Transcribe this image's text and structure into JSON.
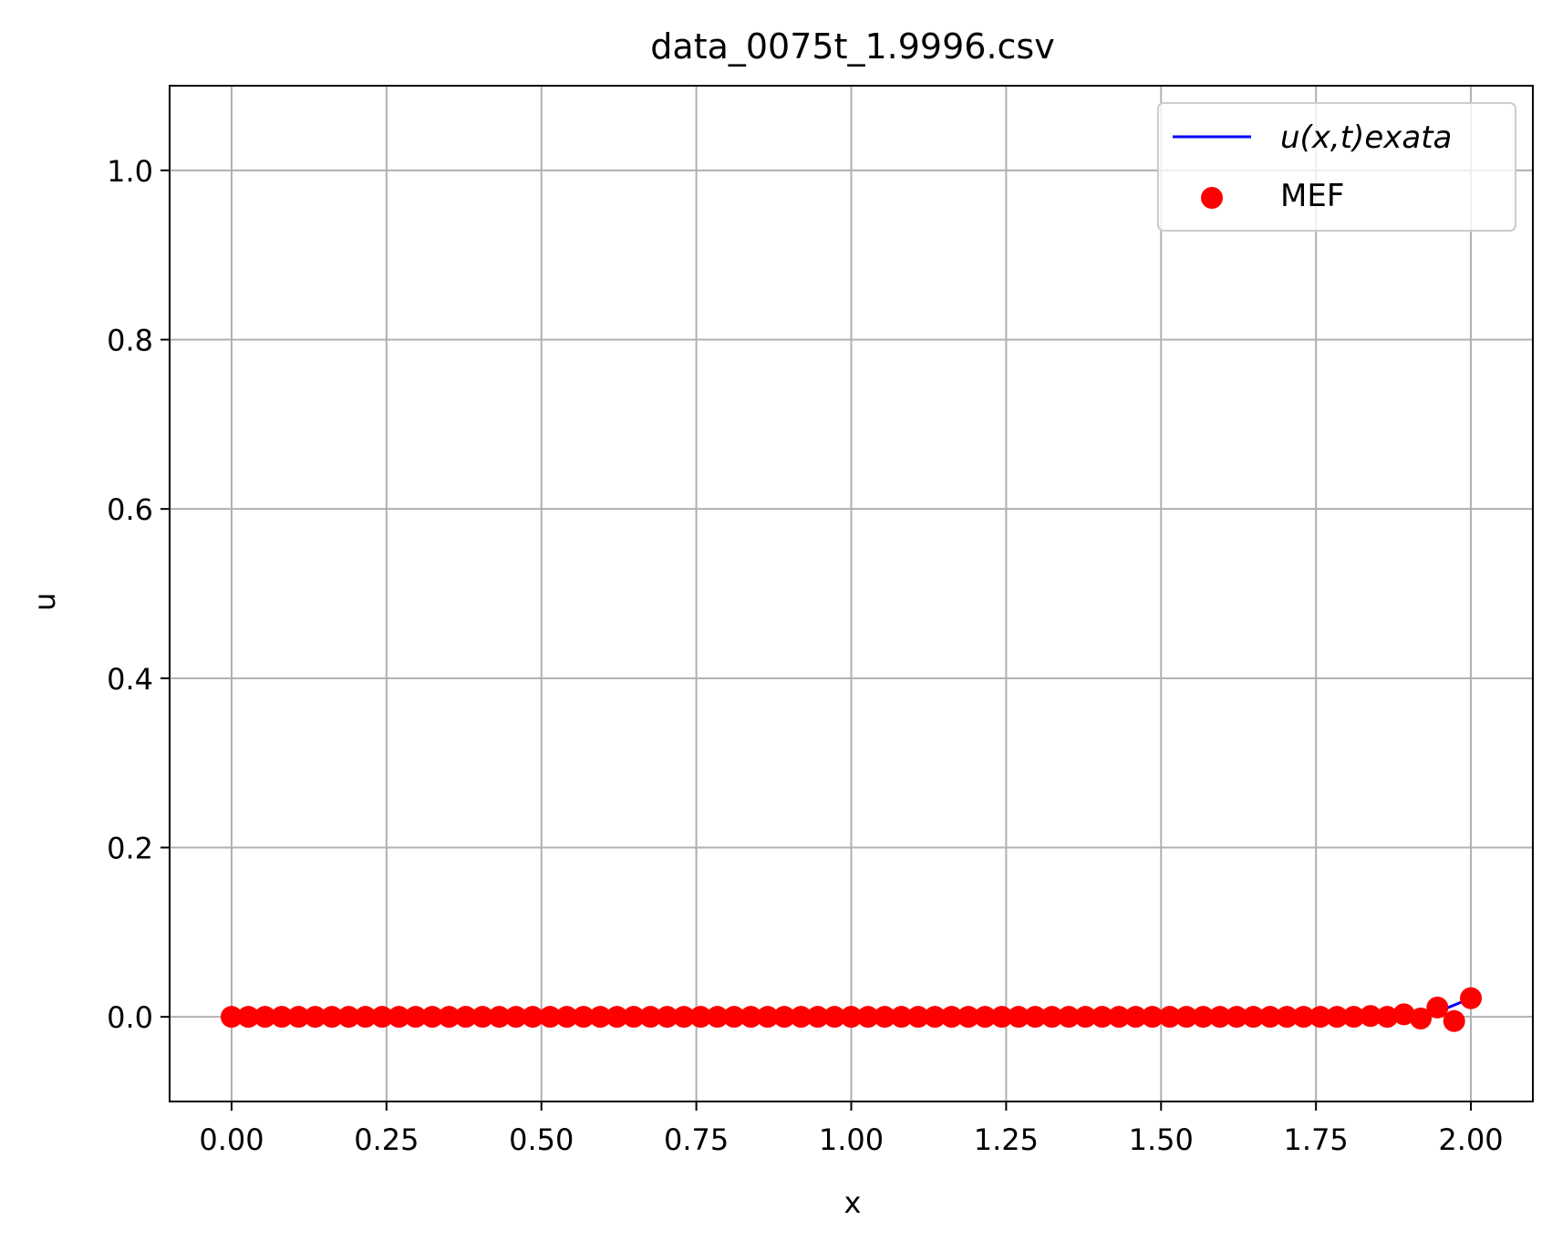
{
  "chart_data": {
    "type": "scatter",
    "title": "data_0075t_1.9996.csv",
    "xlabel": "x",
    "ylabel": "u",
    "xlim": [
      -0.1,
      2.1
    ],
    "ylim": [
      -0.1,
      1.1
    ],
    "xticks": [
      0.0,
      0.25,
      0.5,
      0.75,
      1.0,
      1.25,
      1.5,
      1.75,
      2.0
    ],
    "xtick_labels": [
      "0.00",
      "0.25",
      "0.50",
      "0.75",
      "1.00",
      "1.25",
      "1.50",
      "1.75",
      "2.00"
    ],
    "yticks": [
      0.0,
      0.2,
      0.4,
      0.6,
      0.8,
      1.0
    ],
    "ytick_labels": [
      "0.0",
      "0.2",
      "0.4",
      "0.6",
      "0.8",
      "1.0"
    ],
    "grid": true,
    "legend_position": "top-right",
    "series": [
      {
        "name": "u(x,t)exata",
        "kind": "line",
        "color": "#0000ff",
        "x": [
          0.0,
          0.1,
          0.2,
          0.3,
          0.4,
          0.5,
          0.6,
          0.7,
          0.8,
          0.9,
          1.0,
          1.1,
          1.2,
          1.3,
          1.4,
          1.5,
          1.6,
          1.7,
          1.8,
          1.85,
          1.9,
          1.95,
          2.0
        ],
        "y": [
          0,
          0,
          0,
          0,
          0,
          0,
          0,
          0,
          0,
          0,
          0,
          0,
          0,
          0,
          0,
          0,
          0,
          0,
          0,
          0.0005,
          0.002,
          0.007,
          0.022
        ]
      },
      {
        "name": "MEF",
        "kind": "scatter",
        "color": "#ff0000",
        "x": [
          0.0,
          0.027,
          0.054,
          0.081,
          0.108,
          0.135,
          0.162,
          0.189,
          0.216,
          0.243,
          0.27,
          0.297,
          0.324,
          0.351,
          0.378,
          0.405,
          0.432,
          0.459,
          0.486,
          0.514,
          0.541,
          0.568,
          0.595,
          0.622,
          0.649,
          0.676,
          0.703,
          0.73,
          0.757,
          0.784,
          0.811,
          0.838,
          0.865,
          0.892,
          0.919,
          0.946,
          0.973,
          1.0,
          1.027,
          1.054,
          1.081,
          1.108,
          1.135,
          1.162,
          1.189,
          1.216,
          1.243,
          1.27,
          1.297,
          1.324,
          1.351,
          1.378,
          1.405,
          1.432,
          1.459,
          1.486,
          1.514,
          1.541,
          1.568,
          1.595,
          1.622,
          1.649,
          1.676,
          1.703,
          1.73,
          1.757,
          1.784,
          1.811,
          1.838,
          1.865,
          1.892,
          1.919,
          1.946,
          1.973,
          2.0
        ],
        "y": [
          0,
          0,
          0,
          0,
          0,
          0,
          0,
          0,
          0,
          0,
          0,
          0,
          0,
          0,
          0,
          0,
          0,
          0,
          0,
          0,
          0,
          0,
          0,
          0,
          0,
          0,
          0,
          0,
          0,
          0,
          0,
          0,
          0,
          0,
          0,
          0,
          0,
          0,
          0,
          0,
          0,
          0,
          0,
          0,
          0,
          0,
          0,
          0,
          0,
          0,
          0,
          0,
          0,
          0,
          0,
          0,
          0,
          0,
          0,
          0,
          0,
          0,
          0,
          0,
          0,
          0,
          0,
          0,
          0.001,
          0,
          0.003,
          -0.002,
          0.011,
          -0.005,
          0.022
        ]
      }
    ]
  }
}
